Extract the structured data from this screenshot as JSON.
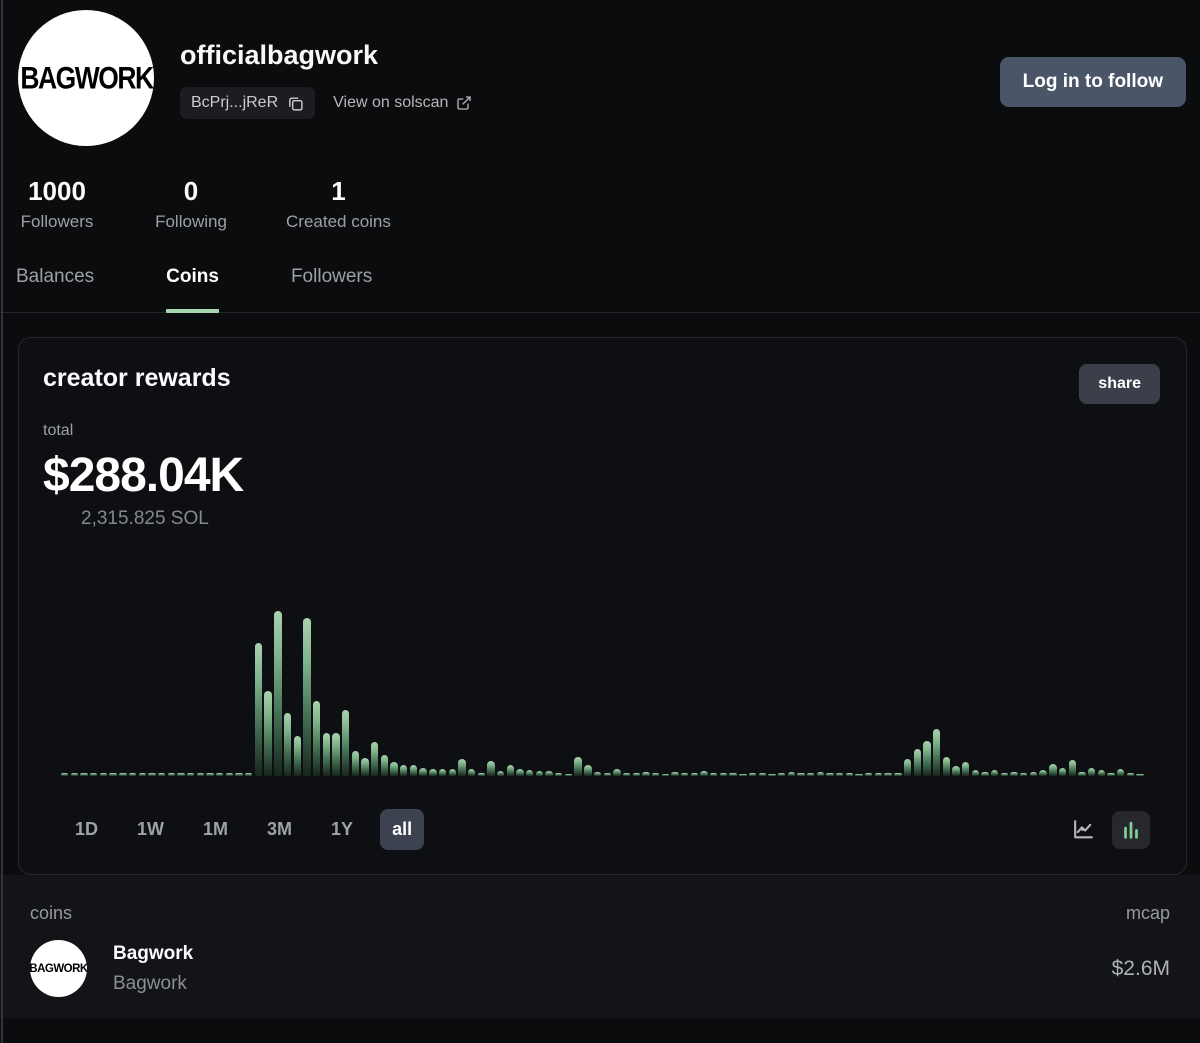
{
  "profile": {
    "avatar_text": "BAGWORK",
    "username": "officialbagwork",
    "address_short": "BcPrj...jReR",
    "solscan_label": "View on solscan",
    "follow_button_label": "Log in to follow",
    "stats": [
      {
        "value": "1000",
        "label": "Followers"
      },
      {
        "value": "0",
        "label": "Following"
      },
      {
        "value": "1",
        "label": "Created coins"
      }
    ]
  },
  "tabs": [
    {
      "label": "Balances",
      "active": false
    },
    {
      "label": "Coins",
      "active": true
    },
    {
      "label": "Followers",
      "active": false
    }
  ],
  "rewards_card": {
    "title": "creator rewards",
    "share_label": "share",
    "total_label": "total",
    "total_usd": "$288.04K",
    "total_sol": "2,315.825 SOL",
    "time_ranges": [
      "1D",
      "1W",
      "1M",
      "3M",
      "1Y",
      "all"
    ],
    "active_range": "all",
    "chart_type_icons": [
      "line-chart-icon",
      "bar-chart-icon"
    ],
    "active_chart_type": "bar"
  },
  "chart_data": {
    "type": "bar",
    "title": "creator rewards over time (range: all)",
    "xlabel": "",
    "ylabel": "",
    "axis_labels_visible": false,
    "grid": false,
    "legend": "none",
    "value_unit": "relative bar height in px (no axis scale shown; total shown = $288.04K / 2,315.825 SOL)",
    "ylim": [
      0,
      165
    ],
    "bar_color_top": "#a9d2ae",
    "bar_color_bottom": "#18251d",
    "values": [
      3,
      3,
      3,
      3,
      3,
      3,
      3,
      3,
      3,
      3,
      3,
      3,
      3,
      3,
      3,
      3,
      3,
      3,
      3,
      3,
      133,
      85,
      165,
      63,
      40,
      158,
      75,
      43,
      43,
      66,
      25,
      18,
      34,
      21,
      14,
      11,
      11,
      8,
      7,
      7,
      7,
      17,
      7,
      3,
      15,
      5,
      11,
      7,
      6,
      5,
      5,
      3,
      2,
      19,
      11,
      4,
      3,
      7,
      3,
      3,
      4,
      3,
      2,
      4,
      3,
      3,
      5,
      3,
      3,
      3,
      2,
      3,
      3,
      2,
      3,
      4,
      3,
      3,
      4,
      3,
      3,
      3,
      2,
      3,
      3,
      3,
      3,
      17,
      27,
      35,
      47,
      19,
      10,
      14,
      6,
      4,
      6,
      3,
      4,
      3,
      4,
      6,
      12,
      8,
      16,
      4,
      8,
      6,
      3,
      7,
      3,
      2
    ]
  },
  "coins_section": {
    "header_left": "coins",
    "header_right": "mcap",
    "rows": [
      {
        "avatar_text": "BAGWORK",
        "name": "Bagwork",
        "symbol": "Bagwork",
        "mcap": "$2.6M"
      }
    ]
  },
  "colors": {
    "page_bg": "#0b0c0e",
    "card_bg": "#0e0f12",
    "card_border": "#26282c",
    "accent_green": "#a6d7b0",
    "slate_button": "#4a5568",
    "muted_text": "#9da0a4"
  }
}
